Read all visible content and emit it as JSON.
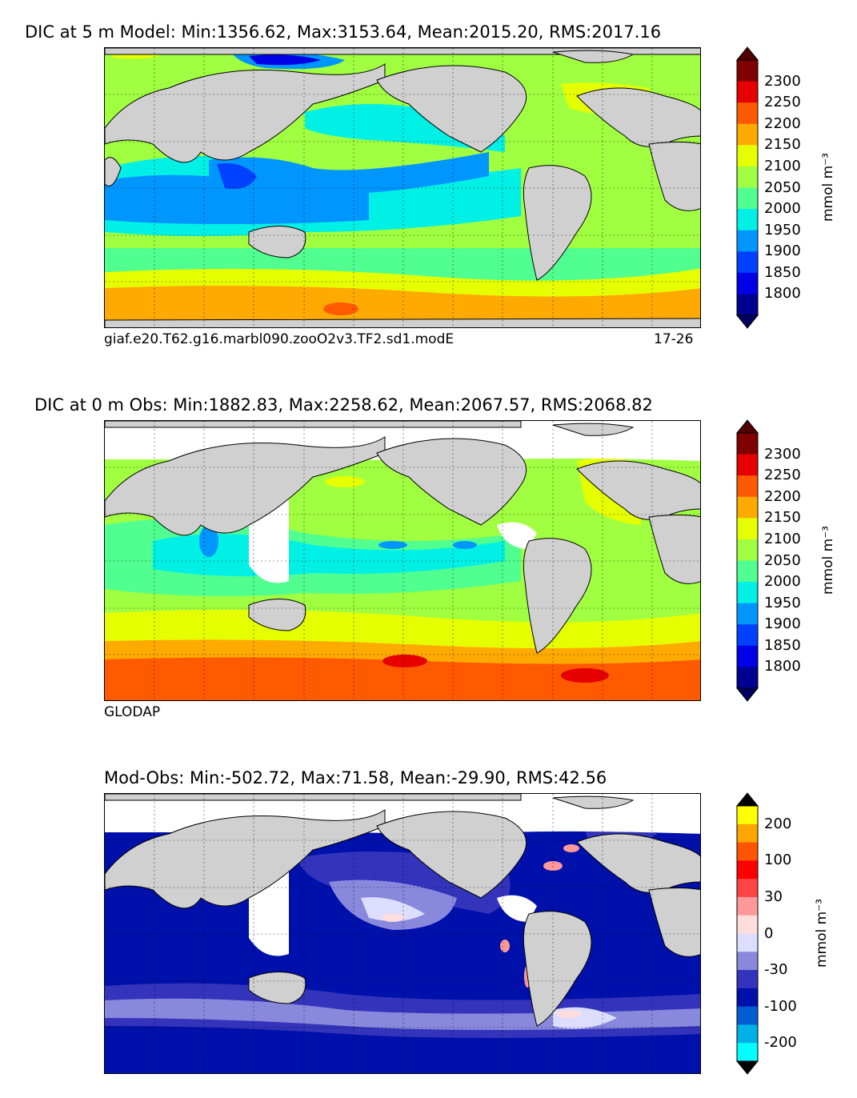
{
  "panels": [
    {
      "title": "DIC at 5 m Model: Min:1356.62, Max:3153.64, Mean:2015.20, RMS:2017.16",
      "subtitle_left": "giaf.e20.T62.g16.marbl090.zooO2v3.TF2.sd1.modE",
      "subtitle_right": "17-26",
      "colorbar": {
        "unit": "mmol m⁻³",
        "ticks": [
          "2300",
          "2250",
          "2200",
          "2150",
          "2100",
          "2050",
          "2000",
          "1950",
          "1900",
          "1850",
          "1800"
        ],
        "colors": [
          "#800000",
          "#e60000",
          "#ff5a00",
          "#ffaa00",
          "#e6ff00",
          "#a0ff40",
          "#50ff90",
          "#00f0e6",
          "#0096ff",
          "#0040ff",
          "#0000e6",
          "#000090"
        ],
        "over_color": "#500000",
        "under_color": "#000060"
      }
    },
    {
      "title": "DIC at 0 m Obs: Min:1882.83, Max:2258.62, Mean:2067.57, RMS:2068.82",
      "subtitle_left": "GLODAP",
      "subtitle_right": "",
      "colorbar": {
        "unit": "mmol m⁻³",
        "ticks": [
          "2300",
          "2250",
          "2200",
          "2150",
          "2100",
          "2050",
          "2000",
          "1950",
          "1900",
          "1850",
          "1800"
        ],
        "colors": [
          "#800000",
          "#e60000",
          "#ff5a00",
          "#ffaa00",
          "#e6ff00",
          "#a0ff40",
          "#50ff90",
          "#00f0e6",
          "#0096ff",
          "#0040ff",
          "#0000e6",
          "#000090"
        ],
        "over_color": "#500000",
        "under_color": "#000060"
      }
    },
    {
      "title": "Mod-Obs: Min:-502.72, Max:71.58, Mean:-29.90, RMS:42.56",
      "subtitle_left": "",
      "subtitle_right": "",
      "colorbar": {
        "unit": "mmol m⁻³",
        "ticks": [
          "200",
          "100",
          "30",
          "0",
          "-30",
          "-100",
          "-200"
        ],
        "colors": [
          "#ffff00",
          "#ffa500",
          "#ff5500",
          "#ff0000",
          "#ff4444",
          "#ff9999",
          "#ffdddd",
          "#ddddff",
          "#8888dd",
          "#3333bb",
          "#0010aa",
          "#005fd0",
          "#00b0e6",
          "#00ffff"
        ],
        "over_color": "#000000",
        "under_color": "#000000"
      }
    }
  ]
}
